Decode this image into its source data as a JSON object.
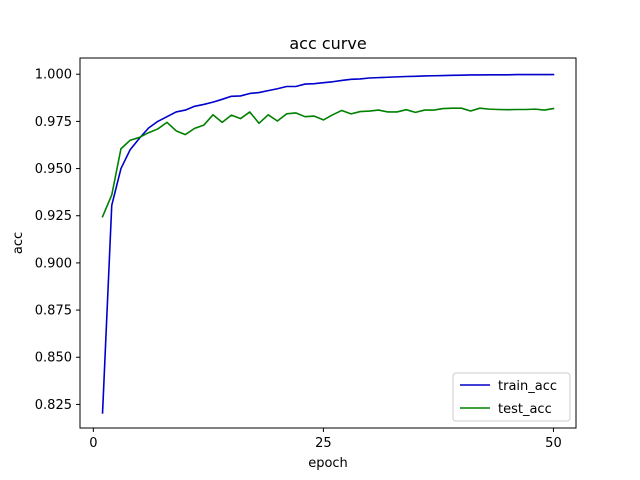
{
  "chart_data": {
    "type": "line",
    "title": "acc curve",
    "xlabel": "epoch",
    "ylabel": "acc",
    "xlim": [
      -1.45,
      52.45
    ],
    "ylim": [
      0.8125,
      1.0086
    ],
    "xticks": [
      0,
      25,
      50
    ],
    "xtick_labels": [
      "0",
      "25",
      "50"
    ],
    "yticks": [
      0.825,
      0.85,
      0.875,
      0.9,
      0.925,
      0.95,
      0.975,
      1.0
    ],
    "ytick_labels": [
      "0.825",
      "0.850",
      "0.875",
      "0.900",
      "0.925",
      "0.950",
      "0.975",
      "1.000"
    ],
    "grid": false,
    "legend_position": "lower-right",
    "x": [
      1,
      2,
      3,
      4,
      5,
      6,
      7,
      8,
      9,
      10,
      11,
      12,
      13,
      14,
      15,
      16,
      17,
      18,
      19,
      20,
      21,
      22,
      23,
      24,
      25,
      26,
      27,
      28,
      29,
      30,
      31,
      32,
      33,
      34,
      35,
      36,
      37,
      38,
      39,
      40,
      41,
      42,
      43,
      44,
      45,
      46,
      47,
      48,
      49,
      50
    ],
    "series": [
      {
        "name": "train_acc",
        "color": "#0000cc",
        "values": [
          0.8205,
          0.9305,
          0.95,
          0.96,
          0.966,
          0.9715,
          0.975,
          0.9775,
          0.98,
          0.981,
          0.983,
          0.984,
          0.9852,
          0.9867,
          0.9883,
          0.9885,
          0.9898,
          0.9903,
          0.9913,
          0.9923,
          0.9935,
          0.9935,
          0.9948,
          0.995,
          0.9955,
          0.996,
          0.9967,
          0.9973,
          0.9975,
          0.998,
          0.9982,
          0.9984,
          0.9986,
          0.9988,
          0.9989,
          0.9991,
          0.9992,
          0.9993,
          0.9994,
          0.9995,
          0.9996,
          0.9996,
          0.9997,
          0.9997,
          0.9997,
          0.9998,
          0.9998,
          0.9998,
          0.9998,
          0.9998
        ]
      },
      {
        "name": "test_acc",
        "color": "#008000",
        "values": [
          0.9245,
          0.936,
          0.9605,
          0.965,
          0.9665,
          0.969,
          0.971,
          0.9745,
          0.97,
          0.968,
          0.9713,
          0.973,
          0.9785,
          0.9745,
          0.9783,
          0.9765,
          0.98,
          0.974,
          0.9785,
          0.9752,
          0.979,
          0.9795,
          0.9775,
          0.9778,
          0.9758,
          0.9785,
          0.9808,
          0.979,
          0.9802,
          0.9805,
          0.981,
          0.98,
          0.98,
          0.9812,
          0.9798,
          0.981,
          0.981,
          0.9818,
          0.982,
          0.982,
          0.9805,
          0.982,
          0.9815,
          0.9813,
          0.9812,
          0.9813,
          0.9813,
          0.9815,
          0.981,
          0.9818
        ]
      }
    ]
  }
}
